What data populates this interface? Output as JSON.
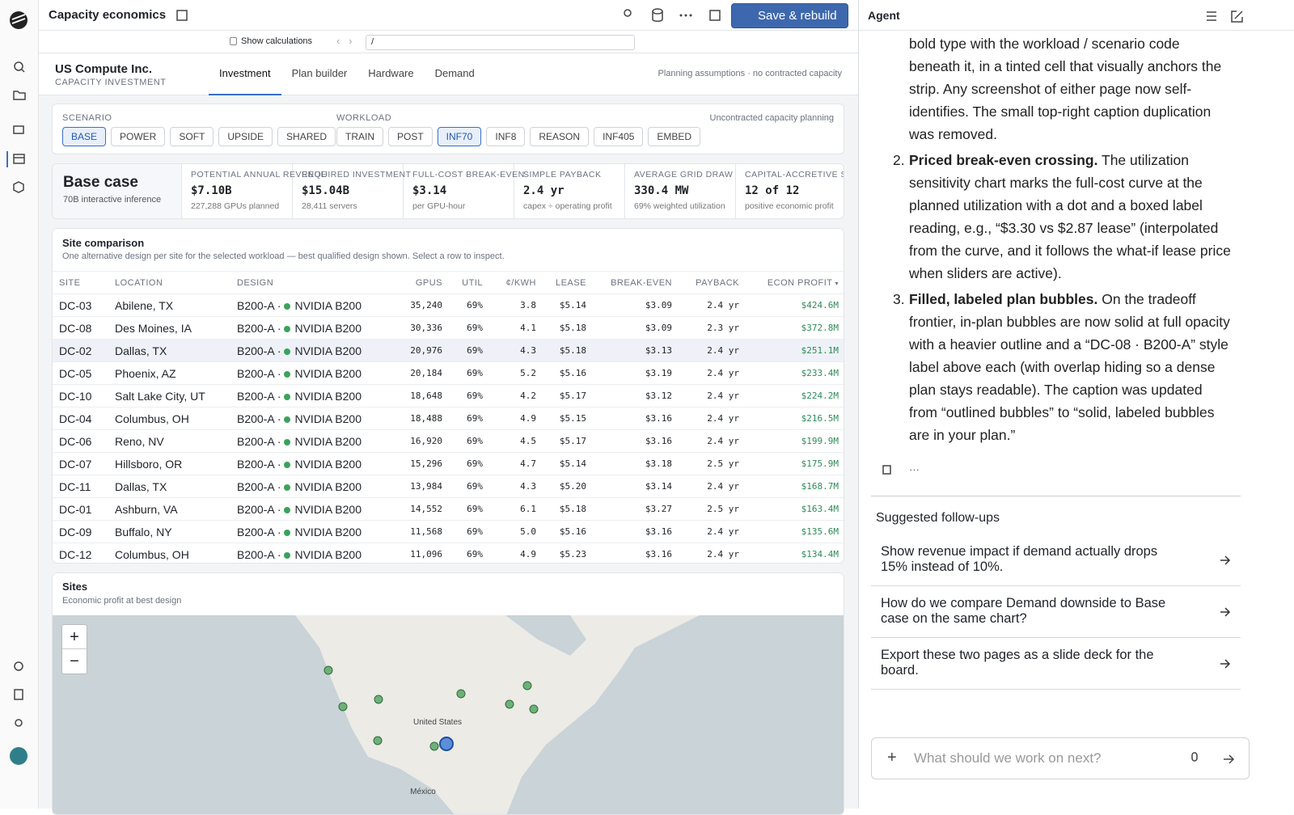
{
  "header": {
    "title": "Capacity economics",
    "button": "Save & rebuild"
  },
  "toolbar": {
    "show_calculations": "Show calculations",
    "path": "/"
  },
  "company": {
    "name": "US Compute Inc.",
    "subtitle": "CAPACITY INVESTMENT"
  },
  "tabs": {
    "items": [
      "Investment",
      "Plan builder",
      "Hardware",
      "Demand"
    ],
    "active": 0
  },
  "note": "Planning assumptions · no contracted capacity",
  "scenario": {
    "label": "SCENARIO",
    "options": [
      "BASE",
      "POWER",
      "SOFT",
      "UPSIDE",
      "SHARED"
    ],
    "active": 0
  },
  "workload": {
    "label": "WORKLOAD",
    "options": [
      "TRAIN",
      "POST",
      "INF70",
      "INF8",
      "REASON",
      "INF405",
      "EMBED"
    ],
    "active": 2
  },
  "strip_caption": "Uncontracted capacity planning",
  "case": {
    "title": "Base case",
    "subtitle": "70B interactive inference"
  },
  "kpis": [
    {
      "label": "POTENTIAL ANNUAL REVENUE",
      "value": "$7.10B",
      "sub": "227,288 GPUs planned"
    },
    {
      "label": "REQUIRED INVESTMENT",
      "value": "$15.04B",
      "sub": "28,411 servers"
    },
    {
      "label": "FULL-COST BREAK-EVEN",
      "value": "$3.14",
      "sub": "per GPU-hour"
    },
    {
      "label": "SIMPLE PAYBACK",
      "value": "2.4 yr",
      "sub": "capex ÷ operating profit"
    },
    {
      "label": "AVERAGE GRID DRAW",
      "value": "330.4 MW",
      "sub": "69% weighted utilization"
    },
    {
      "label": "CAPITAL-ACCRETIVE SITES",
      "value": "12 of 12",
      "sub": "positive economic profit"
    }
  ],
  "site_comparison": {
    "title": "Site comparison",
    "subtitle": "One alternative design per site for the selected workload — best qualified design shown. Select a row to inspect.",
    "columns": [
      "SITE",
      "LOCATION",
      "DESIGN",
      "GPUS",
      "UTIL",
      "¢/KWH",
      "LEASE",
      "BREAK-EVEN",
      "PAYBACK",
      "ECON PROFIT"
    ],
    "selected": 2,
    "rows": [
      [
        "DC-03",
        "Abilene, TX",
        "B200-A ·",
        "NVIDIA B200",
        "35,240",
        "69%",
        "3.8",
        "$5.14",
        "$3.09",
        "2.4 yr",
        "$424.6M"
      ],
      [
        "DC-08",
        "Des Moines, IA",
        "B200-A ·",
        "NVIDIA B200",
        "30,336",
        "69%",
        "4.1",
        "$5.18",
        "$3.09",
        "2.3 yr",
        "$372.8M"
      ],
      [
        "DC-02",
        "Dallas, TX",
        "B200-A ·",
        "NVIDIA B200",
        "20,976",
        "69%",
        "4.3",
        "$5.18",
        "$3.13",
        "2.4 yr",
        "$251.1M"
      ],
      [
        "DC-05",
        "Phoenix, AZ",
        "B200-A ·",
        "NVIDIA B200",
        "20,184",
        "69%",
        "5.2",
        "$5.16",
        "$3.19",
        "2.4 yr",
        "$233.4M"
      ],
      [
        "DC-10",
        "Salt Lake City, UT",
        "B200-A ·",
        "NVIDIA B200",
        "18,648",
        "69%",
        "4.2",
        "$5.17",
        "$3.12",
        "2.4 yr",
        "$224.2M"
      ],
      [
        "DC-04",
        "Columbus, OH",
        "B200-A ·",
        "NVIDIA B200",
        "18,488",
        "69%",
        "4.9",
        "$5.15",
        "$3.16",
        "2.4 yr",
        "$216.5M"
      ],
      [
        "DC-06",
        "Reno, NV",
        "B200-A ·",
        "NVIDIA B200",
        "16,920",
        "69%",
        "4.5",
        "$5.17",
        "$3.16",
        "2.4 yr",
        "$199.9M"
      ],
      [
        "DC-07",
        "Hillsboro, OR",
        "B200-A ·",
        "NVIDIA B200",
        "15,296",
        "69%",
        "4.7",
        "$5.14",
        "$3.18",
        "2.5 yr",
        "$175.9M"
      ],
      [
        "DC-11",
        "Dallas, TX",
        "B200-A ·",
        "NVIDIA B200",
        "13,984",
        "69%",
        "4.3",
        "$5.20",
        "$3.14",
        "2.4 yr",
        "$168.7M"
      ],
      [
        "DC-01",
        "Ashburn, VA",
        "B200-A ·",
        "NVIDIA B200",
        "14,552",
        "69%",
        "6.1",
        "$5.18",
        "$3.27",
        "2.5 yr",
        "$163.4M"
      ],
      [
        "DC-09",
        "Buffalo, NY",
        "B200-A ·",
        "NVIDIA B200",
        "11,568",
        "69%",
        "5.0",
        "$5.16",
        "$3.16",
        "2.4 yr",
        "$135.6M"
      ],
      [
        "DC-12",
        "Columbus, OH",
        "B200-A ·",
        "NVIDIA B200",
        "11,096",
        "69%",
        "4.9",
        "$5.23",
        "$3.16",
        "2.4 yr",
        "$134.4M"
      ]
    ]
  },
  "sites": {
    "title": "Sites",
    "subtitle": "Economic profit at best design",
    "zoom_in": "+",
    "zoom_out": "−",
    "labels": [
      "United States",
      "México"
    ]
  },
  "agent": {
    "title": "Agent",
    "intro": "bold type with the workload / scenario code beneath it, in a tinted cell that visually anchors the strip. Any screenshot of either page now self-identifies. The small top-right caption duplication was removed.",
    "items": [
      {
        "number": "2.",
        "lead": "Priced break-even crossing.",
        "text": "The utilization sensitivity chart marks the full-cost curve at the planned utilization with a dot and a boxed label reading, e.g., “$3.30 vs $2.87 lease” (interpolated from the curve, and it follows the what-if lease price when sliders are active)."
      },
      {
        "number": "3.",
        "lead": "Filled, labeled plan bubbles.",
        "text": "On the tradeoff frontier, in-plan bubbles are now solid at full opacity with a heavier outline and a “DC-08 · B200-A” style label above each (with overlap hiding so a dense plan stays readable). The caption was updated from “outlined bubbles” to “solid, labeled bubbles are in your plan.”"
      }
    ],
    "more": "···",
    "followups_title": "Suggested follow-ups",
    "followups": [
      "Show revenue impact if demand actually drops 15% instead of 10%.",
      "How do we compare Demand downside to Base case on the same chart?",
      "Export these two pages as a slide deck for the board."
    ],
    "placeholder": "What should we work on next?"
  }
}
